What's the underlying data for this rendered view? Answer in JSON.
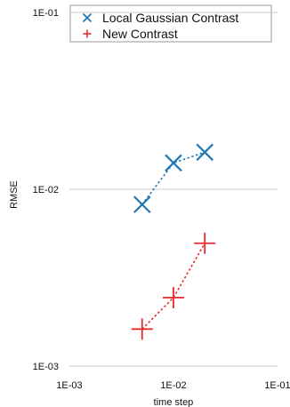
{
  "chart_data": {
    "type": "line",
    "xlabel": "time step",
    "ylabel": "RMSE",
    "x_scale": "log",
    "y_scale": "log",
    "xlim": [
      0.001,
      0.1
    ],
    "ylim": [
      0.001,
      0.1
    ],
    "x_ticks": [
      "1E-03",
      "1E-02",
      "1E-01"
    ],
    "y_ticks": [
      "1E-03",
      "1E-02",
      "1E-01"
    ],
    "grid": "horizontal",
    "legend_position": "top-left",
    "series": [
      {
        "name": "Local Gaussian Contrast",
        "marker": "x",
        "color": "#1f77b4",
        "x": [
          0.005,
          0.01,
          0.02
        ],
        "y": [
          0.0082,
          0.0141,
          0.0162
        ]
      },
      {
        "name": "New Contrast",
        "marker": "+",
        "color": "#e8292c",
        "x": [
          0.005,
          0.01,
          0.02
        ],
        "y": [
          0.00162,
          0.00244,
          0.00495
        ]
      }
    ]
  }
}
